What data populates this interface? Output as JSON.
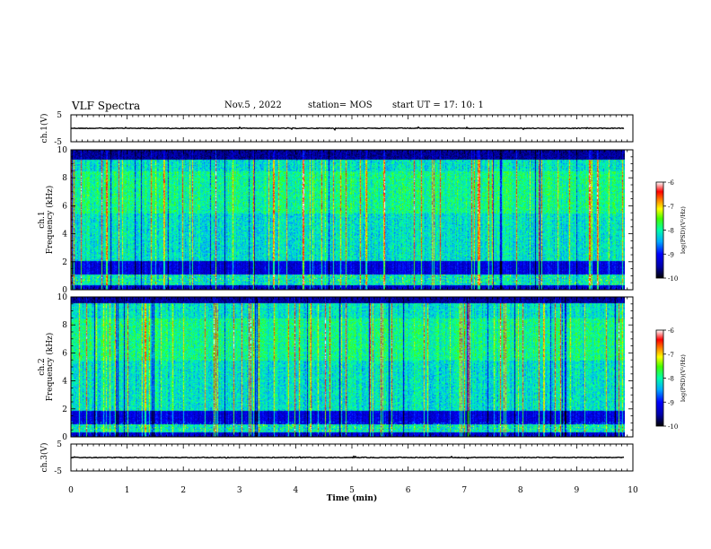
{
  "header": {
    "title": "VLF Spectra",
    "date": "Nov.5  , 2022",
    "station": "station= MOS",
    "start": "start  UT  =   17: 10: 1"
  },
  "chart_data": [
    {
      "type": "line",
      "panel": "ch1-waveform",
      "ylabel": "ch.1(V)",
      "ylim": [
        -5,
        5
      ],
      "yticks": [
        "5",
        "-5"
      ],
      "xlim": [
        0,
        10
      ],
      "trace_level": 0
    },
    {
      "type": "heatmap",
      "panel": "ch1-spectrogram",
      "ylabel": "ch.1\nFrequency (kHz)",
      "ylabel_line1": "ch.1",
      "ylabel_line2": "Frequency (kHz)",
      "ylim": [
        0,
        10
      ],
      "yticks": [
        "0",
        "2",
        "4",
        "6",
        "8",
        "10"
      ],
      "xlim": [
        0,
        10
      ],
      "data_end_min": 9.85,
      "colorbar": {
        "label": "log(PSD)(V²/Hz)",
        "range": [
          -10,
          -6
        ],
        "ticks": [
          "-6",
          "-7",
          "-8",
          "-9",
          "-10"
        ]
      },
      "dark_band_khz": [
        1.1,
        2.1
      ],
      "upper_cutoff_khz": 9.3
    },
    {
      "type": "heatmap",
      "panel": "ch2-spectrogram",
      "ylabel": "ch.2\nFrequency (kHz)",
      "ylabel_line1": "ch.2",
      "ylabel_line2": "Frequency (kHz)",
      "ylim": [
        0,
        10
      ],
      "yticks": [
        "0",
        "2",
        "4",
        "6",
        "8",
        "10"
      ],
      "xlim": [
        0,
        10
      ],
      "data_end_min": 9.85,
      "colorbar": {
        "label": "log(PSD)(V²/Hz)",
        "range": [
          -10,
          -6
        ],
        "ticks": [
          "-6",
          "-7",
          "-8",
          "-9",
          "-10"
        ]
      },
      "dark_band_khz": [
        0.9,
        1.9
      ],
      "upper_cutoff_khz": 9.6
    },
    {
      "type": "line",
      "panel": "ch3-waveform",
      "ylabel": "ch.3(V)",
      "ylim": [
        -5,
        5
      ],
      "yticks": [
        "5",
        "-5"
      ],
      "xlim": [
        0,
        10
      ],
      "trace_level": 0
    }
  ],
  "xaxis": {
    "label": "Time  (min)",
    "ticks": [
      "0",
      "1",
      "2",
      "3",
      "4",
      "5",
      "6",
      "7",
      "8",
      "9",
      "10"
    ]
  },
  "colors": {
    "frame": "#000000",
    "trace": "#000000",
    "colormap": [
      "#000000",
      "#00008b",
      "#0000ff",
      "#00aaff",
      "#00ffff",
      "#55ff55",
      "#ffff00",
      "#ff8800",
      "#ff0000",
      "#ffffff"
    ]
  }
}
